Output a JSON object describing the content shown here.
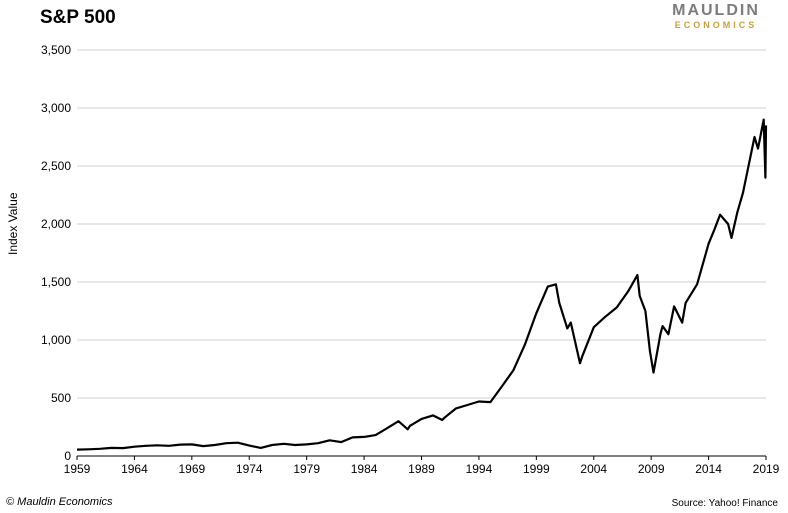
{
  "logo": {
    "top": "MAULDIN",
    "bottom": "ECONOMICS"
  },
  "footer": {
    "copyright": "© Mauldin Economics",
    "source": "Source: Yahoo! Finance"
  },
  "colors": {
    "line": "#000000",
    "grid": "#d0d0d0",
    "logo_gray": "#7c7c7c",
    "logo_gold": "#c8a13a"
  },
  "chart_data": {
    "type": "line",
    "title": "S&P 500",
    "xlabel": "",
    "ylabel": "Index Value",
    "xlim": [
      1959,
      2019
    ],
    "ylim": [
      0,
      3500
    ],
    "grid": "horizontal",
    "x_ticks": [
      1959,
      1964,
      1969,
      1974,
      1979,
      1984,
      1989,
      1994,
      1999,
      2004,
      2009,
      2014,
      2019
    ],
    "y_ticks": [
      0,
      500,
      1000,
      1500,
      2000,
      2500,
      3000,
      3500
    ],
    "y_tick_labels": [
      "0",
      "500",
      "1,000",
      "1,500",
      "2,000",
      "2,500",
      "3,000",
      "3,500"
    ],
    "series": [
      {
        "x": [
          1959,
          1960,
          1961,
          1962,
          1963,
          1964,
          1965,
          1966,
          1967,
          1968,
          1969,
          1970,
          1971,
          1972,
          1973,
          1974,
          1975,
          1976,
          1977,
          1978,
          1979,
          1980,
          1981,
          1982,
          1983,
          1984,
          1985,
          1986,
          1987,
          1987.8,
          1988,
          1989,
          1990,
          1990.8,
          1991,
          1992,
          1993,
          1994,
          1995,
          1996,
          1997,
          1998,
          1999,
          2000,
          2000.7,
          2001,
          2001.7,
          2002,
          2002.8,
          2003,
          2004,
          2005,
          2006,
          2007,
          2007.8,
          2008,
          2008.5,
          2008.9,
          2009.2,
          2009.8,
          2010,
          2010.5,
          2011,
          2011.7,
          2012,
          2013,
          2014,
          2014.5,
          2015,
          2015.7,
          2016,
          2016.5,
          2017,
          2018,
          2018.3,
          2018.8,
          2018.95,
          2019
        ],
        "y": [
          55,
          58,
          62,
          70,
          68,
          80,
          88,
          92,
          88,
          98,
          100,
          85,
          95,
          110,
          115,
          90,
          70,
          95,
          105,
          95,
          100,
          110,
          135,
          120,
          160,
          165,
          180,
          240,
          300,
          230,
          260,
          320,
          350,
          310,
          330,
          410,
          440,
          470,
          465,
          600,
          740,
          960,
          1230,
          1460,
          1480,
          1320,
          1100,
          1150,
          800,
          860,
          1110,
          1200,
          1280,
          1420,
          1560,
          1380,
          1250,
          900,
          720,
          1050,
          1120,
          1050,
          1290,
          1150,
          1320,
          1480,
          1830,
          1950,
          2080,
          2000,
          1880,
          2100,
          2270,
          2750,
          2650,
          2900,
          2400,
          2850
        ]
      }
    ]
  }
}
